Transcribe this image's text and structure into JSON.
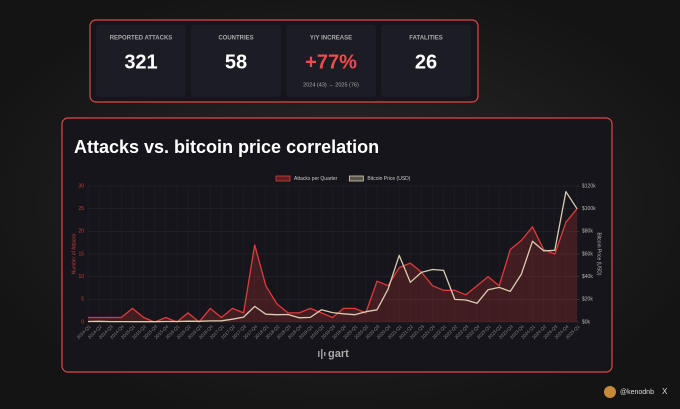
{
  "stats": [
    {
      "label": "REPORTED ATTACKS",
      "value": 321
    },
    {
      "label": "COUNTRIES",
      "value": 58
    },
    {
      "label": "Y/Y INCREASE",
      "value": "+77%",
      "note": "2024 (43) → 2025 (76)"
    },
    {
      "label": "FATALITIES",
      "value": 26
    }
  ],
  "chart_data": {
    "type": "line",
    "title": "Attacks vs. bitcoin price correlation",
    "y_label": "Number of Attacks",
    "y2_label": "Bitcoin Price (USD)",
    "categories": [
      "2014-Q1",
      "2014-Q2",
      "2014-Q3",
      "2014-Q4",
      "2015-Q1",
      "2015-Q2",
      "2015-Q3",
      "2015-Q4",
      "2016-Q1",
      "2016-Q2",
      "2016-Q3",
      "2016-Q4",
      "2017-Q1",
      "2017-Q2",
      "2017-Q3",
      "2017-Q4",
      "2018-Q1",
      "2018-Q2",
      "2018-Q3",
      "2018-Q4",
      "2019-Q1",
      "2019-Q2",
      "2019-Q3",
      "2019-Q4",
      "2020-Q1",
      "2020-Q2",
      "2020-Q3",
      "2020-Q4",
      "2021-Q1",
      "2021-Q2",
      "2021-Q3",
      "2021-Q4",
      "2022-Q1",
      "2022-Q2",
      "2022-Q3",
      "2022-Q4",
      "2023-Q1",
      "2023-Q2",
      "2023-Q3",
      "2023-Q4",
      "2024-Q1",
      "2024-Q2",
      "2024-Q3",
      "2024-Q4",
      "2025-Q1"
    ],
    "series": [
      {
        "name": "Attacks per Quarter",
        "color": "#e03a3a",
        "values": [
          1,
          1,
          1,
          1,
          3,
          1,
          0,
          1,
          0,
          2,
          0,
          3,
          1,
          3,
          2,
          17,
          8,
          4,
          2,
          2,
          3,
          2,
          1,
          3,
          3,
          2,
          9,
          8,
          12,
          13,
          11,
          8,
          7,
          7,
          6,
          8,
          10,
          8,
          16,
          18,
          21,
          16,
          15,
          22,
          25
        ]
      },
      {
        "name": "Bitcoin Price (USD)",
        "color": "#d9ccaf",
        "axis": "y2",
        "values": [
          460,
          640,
          390,
          320,
          245,
          265,
          235,
          430,
          415,
          675,
          610,
          960,
          1080,
          2480,
          4340,
          13800,
          6900,
          6400,
          6600,
          3700,
          4100,
          10800,
          8300,
          7200,
          6400,
          9100,
          10800,
          29000,
          58800,
          35000,
          43800,
          46300,
          45500,
          19900,
          19400,
          16500,
          28500,
          30500,
          27000,
          42300,
          71300,
          62700,
          63300,
          115000,
          100000
        ]
      }
    ],
    "ylim": [
      0,
      30
    ],
    "yticks": [
      0,
      5,
      10,
      15,
      20,
      25,
      30
    ],
    "y2lim": [
      0,
      120000
    ],
    "y2ticks": [
      {
        "value": 0,
        "label": "$0k"
      },
      {
        "value": 20000,
        "label": "$20k"
      },
      {
        "value": 40000,
        "label": "$40k"
      },
      {
        "value": 60000,
        "label": "$60k"
      },
      {
        "value": 80000,
        "label": "$80k"
      },
      {
        "value": 100000,
        "label": "$100k"
      },
      {
        "value": 120000,
        "label": "$120k"
      }
    ],
    "grid": true,
    "legend": "top"
  },
  "brand": "gart",
  "handle": "@kenodnb",
  "network": "X"
}
